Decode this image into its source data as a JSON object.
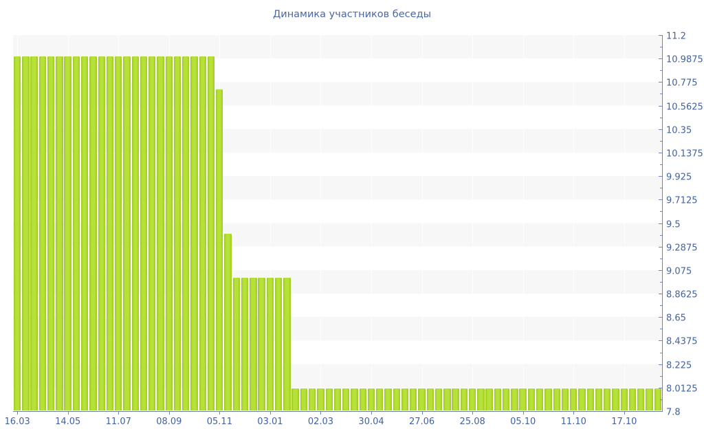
{
  "chart_data": {
    "type": "bar",
    "title": "Динамика участников беседы",
    "xlabel": "",
    "ylabel": "",
    "ylim": [
      7.8,
      11.2
    ],
    "y_ticks": [
      11.2,
      10.9875,
      10.775,
      10.5625,
      10.35,
      10.1375,
      9.925,
      9.7125,
      9.5,
      9.2875,
      9.075,
      8.8625,
      8.65,
      8.4375,
      8.225,
      8.0125,
      7.8
    ],
    "x_tick_labels": [
      "16.03",
      "14.05",
      "11.07",
      "08.09",
      "05.11",
      "03.01",
      "02.03",
      "30.04",
      "27.06",
      "25.08",
      "05.10",
      "11.10",
      "17.10"
    ],
    "bars_per_tick": 6,
    "values": [
      11,
      11,
      11,
      11,
      11,
      11,
      11,
      11,
      11,
      11,
      11,
      11,
      11,
      11,
      11,
      11,
      11,
      11,
      11,
      11,
      11,
      11,
      11,
      11,
      10.7,
      9.4,
      9,
      9,
      9,
      9,
      9,
      9,
      9,
      8,
      8,
      8,
      8,
      8,
      8,
      8,
      8,
      8,
      8,
      8,
      8,
      8,
      8,
      8,
      8,
      8,
      8,
      8,
      8,
      8,
      8,
      8,
      8,
      8,
      8,
      8,
      8,
      8,
      8,
      8,
      8,
      8,
      8,
      8,
      8,
      8,
      8,
      8,
      8,
      8,
      8,
      8,
      8
    ],
    "legend": "none",
    "grid": "horizontal-bands-with-faint-vertical-lines",
    "y_axis_position": "right",
    "colors": {
      "bar_center": "#b6e138",
      "bar_edge": "#9fc822",
      "axis": "#6e82b5",
      "tick_label": "#4062a4",
      "title": "#4a67a6",
      "band": "#f7f7f7",
      "background": "#ffffff"
    }
  }
}
